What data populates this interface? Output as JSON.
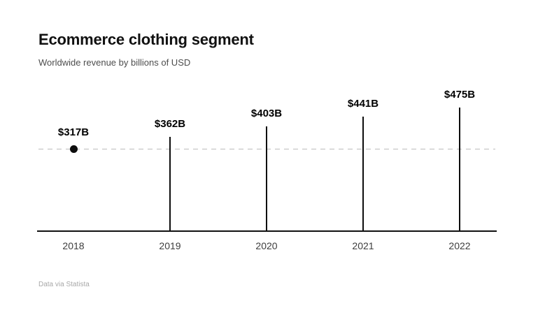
{
  "header": {
    "title": "Ecommerce clothing segment",
    "subtitle": "Worldwide revenue by billions of USD"
  },
  "footer": {
    "source": "Data via Statista"
  },
  "chart_data": {
    "type": "bar",
    "variant": "lollipop",
    "title": "Ecommerce clothing segment",
    "subtitle": "Worldwide revenue by billions of USD",
    "categories": [
      "2018",
      "2019",
      "2020",
      "2021",
      "2022"
    ],
    "values": [
      317,
      362,
      403,
      441,
      475
    ],
    "value_labels": [
      "$317B",
      "$362B",
      "$403B",
      "$441B",
      "$475B"
    ],
    "unit": "billions of USD",
    "xlabel": "",
    "ylabel": "",
    "ylim": [
      0,
      500
    ],
    "grid": false,
    "legend": "none",
    "marker_styles": [
      "dot",
      "stem",
      "stem",
      "stem",
      "stem"
    ],
    "reference_line": {
      "value": 317,
      "style": "dashed",
      "color": "#bcbcbc"
    },
    "colors": {
      "marker": "#0d0d0d",
      "axis": "#111111",
      "value_label": "#000000",
      "category_label": "#3d3d3d"
    }
  }
}
